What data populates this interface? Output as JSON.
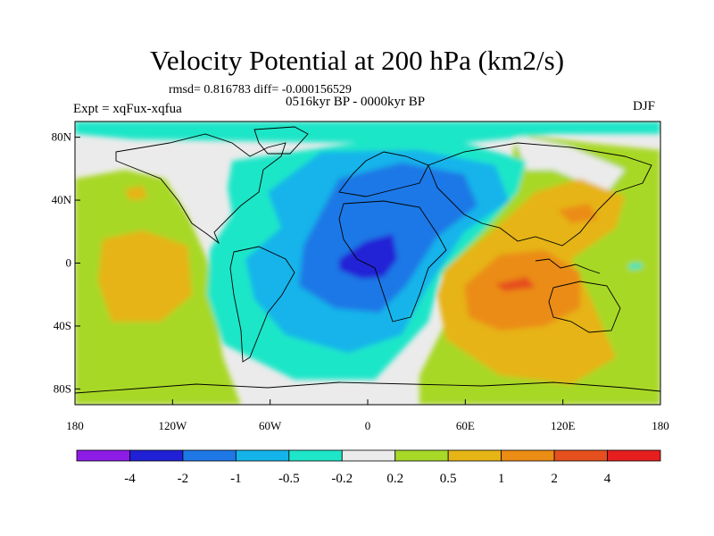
{
  "title": "Velocity Potential at 200 hPa (km2/s)",
  "stats_text": "rmsd= 0.816783 diff= -0.000156529",
  "period_text": "0516kyr BP - 0000kyr BP",
  "expt_text": "Expt = xqFux-xqfua",
  "season": "DJF",
  "map": {
    "projection": "cylindrical-equidistant",
    "lon_range": [
      -180,
      180
    ],
    "lat_range": [
      -90,
      90
    ],
    "background_color": "#ebebeb",
    "x_tick_labels": [
      "180",
      "120W",
      "60W",
      "0",
      "60E",
      "120E",
      "180"
    ],
    "y_tick_labels": [
      "80N",
      "40N",
      "0",
      "40S",
      "80S"
    ]
  },
  "colorbar": {
    "colors": [
      "#8c1ce6",
      "#2020d6",
      "#1e78e6",
      "#14b4ea",
      "#1ee6c8",
      "#ebebeb",
      "#a8d828",
      "#e6b414",
      "#eb8c14",
      "#e6501e",
      "#e61e1e"
    ],
    "labels": [
      "-4",
      "-2",
      "-1",
      "-0.5",
      "-0.2",
      "0.2",
      "0.5",
      "1",
      "2",
      "4"
    ]
  }
}
